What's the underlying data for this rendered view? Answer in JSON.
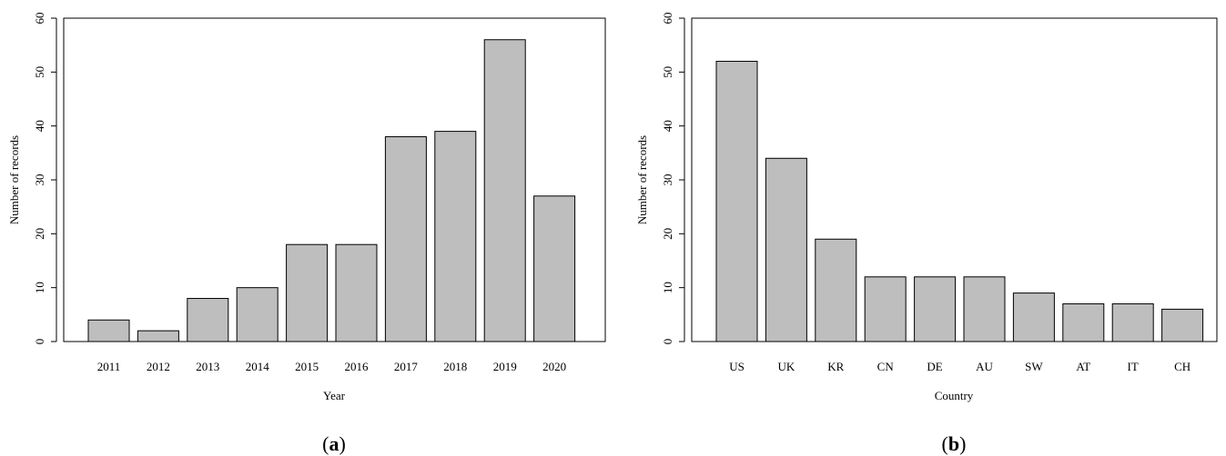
{
  "chart_data": [
    {
      "type": "bar",
      "panel_label": "a",
      "categories": [
        "2011",
        "2012",
        "2013",
        "2014",
        "2015",
        "2016",
        "2017",
        "2018",
        "2019",
        "2020"
      ],
      "values": [
        4,
        2,
        8,
        10,
        18,
        18,
        38,
        39,
        56,
        27
      ],
      "xlabel": "Year",
      "ylabel": "Number of records",
      "ylim": [
        0,
        60
      ],
      "yticks": [
        "0",
        "10",
        "20",
        "30",
        "40",
        "50",
        "60"
      ],
      "grid": false,
      "bar_color": "#bebebe",
      "edge_color": "#000000"
    },
    {
      "type": "bar",
      "panel_label": "b",
      "categories": [
        "US",
        "UK",
        "KR",
        "CN",
        "DE",
        "AU",
        "SW",
        "AT",
        "IT",
        "CH"
      ],
      "values": [
        52,
        34,
        19,
        12,
        12,
        12,
        9,
        7,
        7,
        6
      ],
      "xlabel": "Country",
      "ylabel": "Number of records",
      "ylim": [
        0,
        60
      ],
      "yticks": [
        "0",
        "10",
        "20",
        "30",
        "40",
        "50",
        "60"
      ],
      "grid": false,
      "bar_color": "#bebebe",
      "edge_color": "#000000"
    }
  ]
}
